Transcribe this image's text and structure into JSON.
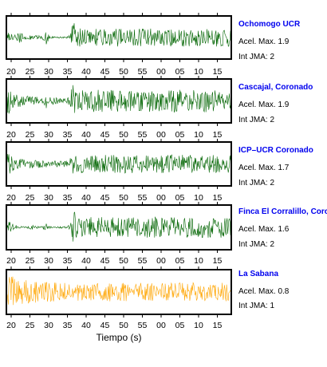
{
  "chart_data": {
    "type": "line",
    "xlabel": "Tiempo (s)",
    "x_tick_labels": [
      "20",
      "25",
      "30",
      "35",
      "40",
      "45",
      "50",
      "55",
      "00",
      "05",
      "10",
      "15"
    ],
    "grid": false,
    "stations": [
      {
        "name": "Ochomogo UCR",
        "accel_label": "Acel. Max. 1.9",
        "intensity_label": "Int JMA: 2",
        "color": "#006400",
        "envelope": [
          [
            0,
            0.45
          ],
          [
            2,
            0.25
          ],
          [
            9,
            0.14
          ],
          [
            17,
            0.28
          ],
          [
            19,
            0.22
          ],
          [
            26,
            0.09
          ],
          [
            31,
            0.12
          ],
          [
            35,
            0.05
          ],
          [
            38,
            0.18
          ],
          [
            41,
            0.1
          ],
          [
            47,
            0.12
          ],
          [
            48,
            0.22
          ],
          [
            49,
            0.4
          ],
          [
            50.5,
            0.55
          ],
          [
            52,
            0.2
          ],
          [
            55,
            0.06
          ],
          [
            75,
            0.03
          ],
          [
            77,
            0.07
          ],
          [
            79,
            0.15
          ],
          [
            81,
            0.35
          ],
          [
            82,
            0.55
          ],
          [
            83,
            0.95
          ],
          [
            84.5,
            0.8
          ],
          [
            86,
            0.6
          ],
          [
            88,
            0.45
          ]
        ]
      },
      {
        "name": "Cascajal, Coronado",
        "accel_label": "Acel. Max. 1.9",
        "intensity_label": "Int JMA: 2",
        "color": "#006400",
        "envelope": [
          [
            0,
            0.55
          ],
          [
            1.5,
            0.85
          ],
          [
            4,
            0.65
          ],
          [
            8,
            0.42
          ],
          [
            14,
            0.32
          ],
          [
            22,
            0.26
          ],
          [
            32,
            0.22
          ],
          [
            44,
            0.2
          ],
          [
            48,
            0.32
          ],
          [
            50,
            0.45
          ],
          [
            52,
            0.28
          ],
          [
            58,
            0.18
          ],
          [
            70,
            0.12
          ],
          [
            76,
            0.13
          ],
          [
            79,
            0.22
          ],
          [
            81,
            0.45
          ],
          [
            83,
            0.95
          ],
          [
            85,
            0.75
          ],
          [
            88,
            0.55
          ]
        ]
      },
      {
        "name": "ICP–UCR Coronado",
        "accel_label": "Acel. Max. 1.7",
        "intensity_label": "Int JMA: 2",
        "color": "#006400",
        "envelope": [
          [
            0,
            0.95
          ],
          [
            2,
            0.6
          ],
          [
            5,
            0.45
          ],
          [
            10,
            0.32
          ],
          [
            20,
            0.24
          ],
          [
            35,
            0.2
          ],
          [
            50,
            0.18
          ],
          [
            62,
            0.16
          ],
          [
            74,
            0.15
          ],
          [
            78,
            0.2
          ],
          [
            80,
            0.35
          ],
          [
            82,
            0.5
          ],
          [
            84,
            0.48
          ],
          [
            88,
            0.45
          ]
        ]
      },
      {
        "name": "Finca El Corralillo, Coronado",
        "accel_label": "Acel. Max. 1.6",
        "intensity_label": "Int JMA: 2",
        "color": "#006400",
        "envelope": [
          [
            0,
            0.3
          ],
          [
            1.5,
            0.6
          ],
          [
            3,
            0.45
          ],
          [
            6,
            0.2
          ],
          [
            11,
            0.12
          ],
          [
            18,
            0.06
          ],
          [
            24,
            0.05
          ],
          [
            30,
            0.08
          ],
          [
            34,
            0.14
          ],
          [
            36,
            0.06
          ],
          [
            45,
            0.05
          ],
          [
            50,
            0.18
          ],
          [
            52,
            0.06
          ],
          [
            60,
            0.04
          ],
          [
            76,
            0.05
          ],
          [
            79,
            0.12
          ],
          [
            81,
            0.3
          ],
          [
            82.5,
            0.55
          ],
          [
            84,
            1.0
          ],
          [
            86,
            0.7
          ],
          [
            88,
            0.5
          ]
        ]
      },
      {
        "name": "La Sabana",
        "accel_label": "Acel. Max. 0.8",
        "intensity_label": "Int JMA: 1",
        "color": "#ffa500",
        "envelope": [
          [
            0,
            0.6
          ],
          [
            3,
            0.95
          ],
          [
            8,
            0.85
          ],
          [
            14,
            0.7
          ],
          [
            22,
            0.6
          ],
          [
            32,
            0.55
          ],
          [
            44,
            0.52
          ],
          [
            58,
            0.48
          ],
          [
            70,
            0.45
          ],
          [
            80,
            0.45
          ],
          [
            88,
            0.45
          ]
        ]
      }
    ]
  }
}
